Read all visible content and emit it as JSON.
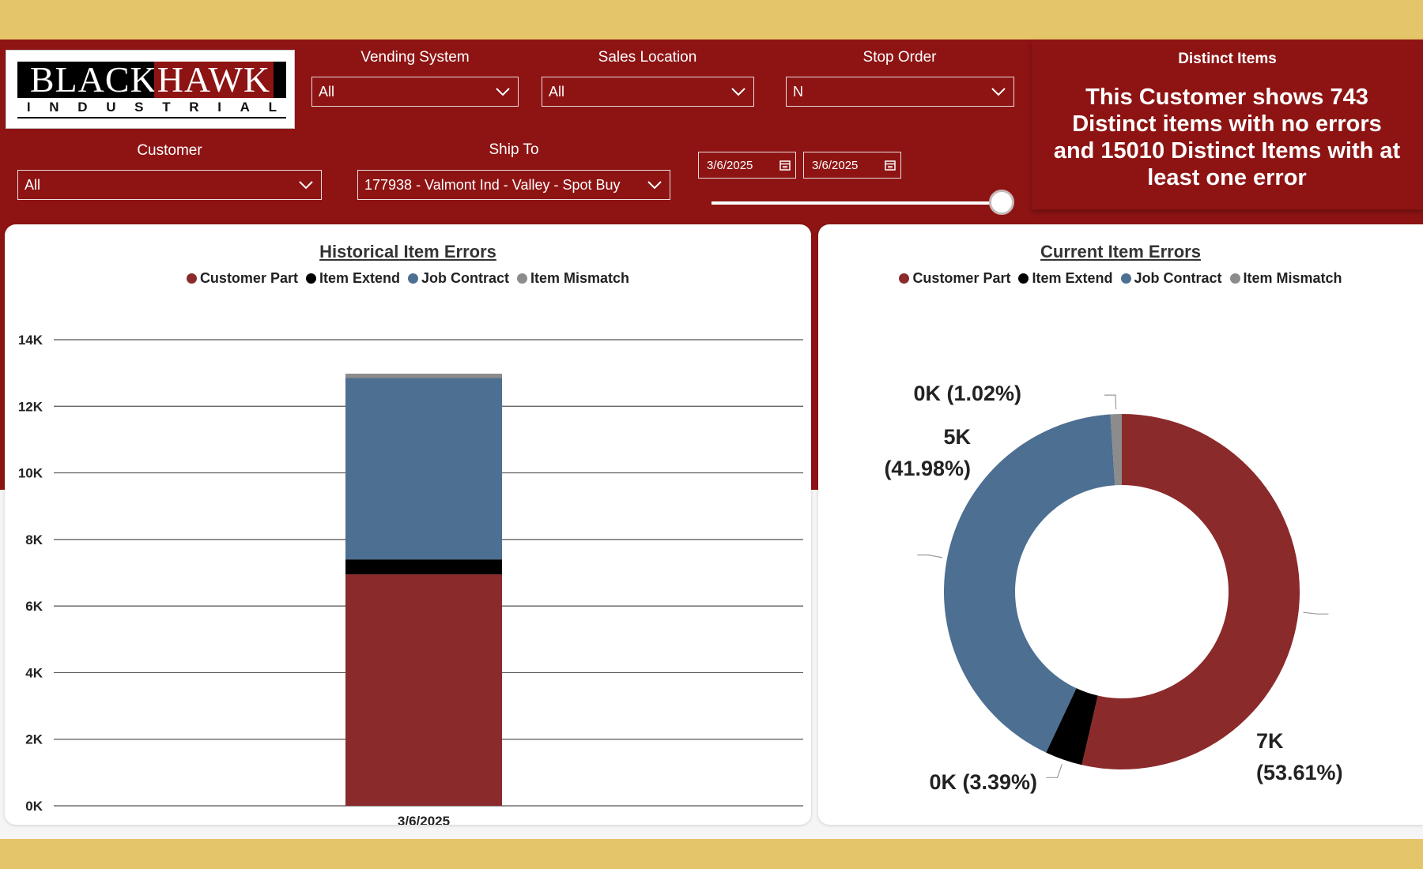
{
  "logo": {
    "top": [
      "BLACK",
      "HAWK"
    ],
    "bottom": [
      "I",
      "N",
      "D",
      "U",
      "S",
      "T",
      "R",
      "I",
      "A",
      "L"
    ]
  },
  "filters": {
    "vending_system": {
      "label": "Vending System",
      "value": "All"
    },
    "sales_location": {
      "label": "Sales Location",
      "value": "All"
    },
    "stop_order": {
      "label": "Stop Order",
      "value": "N"
    },
    "customer": {
      "label": "Customer",
      "value": "All"
    },
    "ship_to": {
      "label": "Ship To",
      "value": "177938 - Valmont Ind - Valley - Spot Buy"
    },
    "date_start": "3/6/2025",
    "date_end": "3/6/2025",
    "date_slider_position": 1.0
  },
  "distinct_items": {
    "title": "Distinct Items",
    "message": "This Customer shows 743 Distinct items with no errors and 15010 Distinct Items with at least one error"
  },
  "legend": [
    {
      "label": "Customer Part",
      "color": "#8b2a2b"
    },
    {
      "label": "Item Extend",
      "color": "#000000"
    },
    {
      "label": "Job Contract",
      "color": "#4c6f92"
    },
    {
      "label": "Item Mismatch",
      "color": "#8c8c8c"
    }
  ],
  "chart_data": [
    {
      "type": "bar",
      "title": "Historical Item Errors",
      "stacked": true,
      "categories": [
        "3/6/2025"
      ],
      "series": [
        {
          "name": "Customer Part",
          "values": [
            6950
          ]
        },
        {
          "name": "Item Extend",
          "values": [
            450
          ]
        },
        {
          "name": "Job Contract",
          "values": [
            5450
          ]
        },
        {
          "name": "Item Mismatch",
          "values": [
            130
          ]
        }
      ],
      "yticks": [
        "0K",
        "2K",
        "4K",
        "6K",
        "8K",
        "10K",
        "12K",
        "14K"
      ],
      "ylim": [
        0,
        14000
      ],
      "grid": true,
      "legend_position": "top-center"
    },
    {
      "type": "pie",
      "donut": true,
      "title": "Current Item Errors",
      "slices": [
        {
          "name": "Customer Part",
          "percent": 53.61,
          "label": "7K",
          "pct_label": "(53.61%)"
        },
        {
          "name": "Item Extend",
          "percent": 3.39,
          "label": "0K (3.39%)"
        },
        {
          "name": "Job Contract",
          "percent": 41.98,
          "label": "5K",
          "pct_label": "(41.98%)"
        },
        {
          "name": "Item Mismatch",
          "percent": 1.02,
          "label": "0K (1.02%)"
        }
      ],
      "legend_position": "top-center"
    }
  ]
}
